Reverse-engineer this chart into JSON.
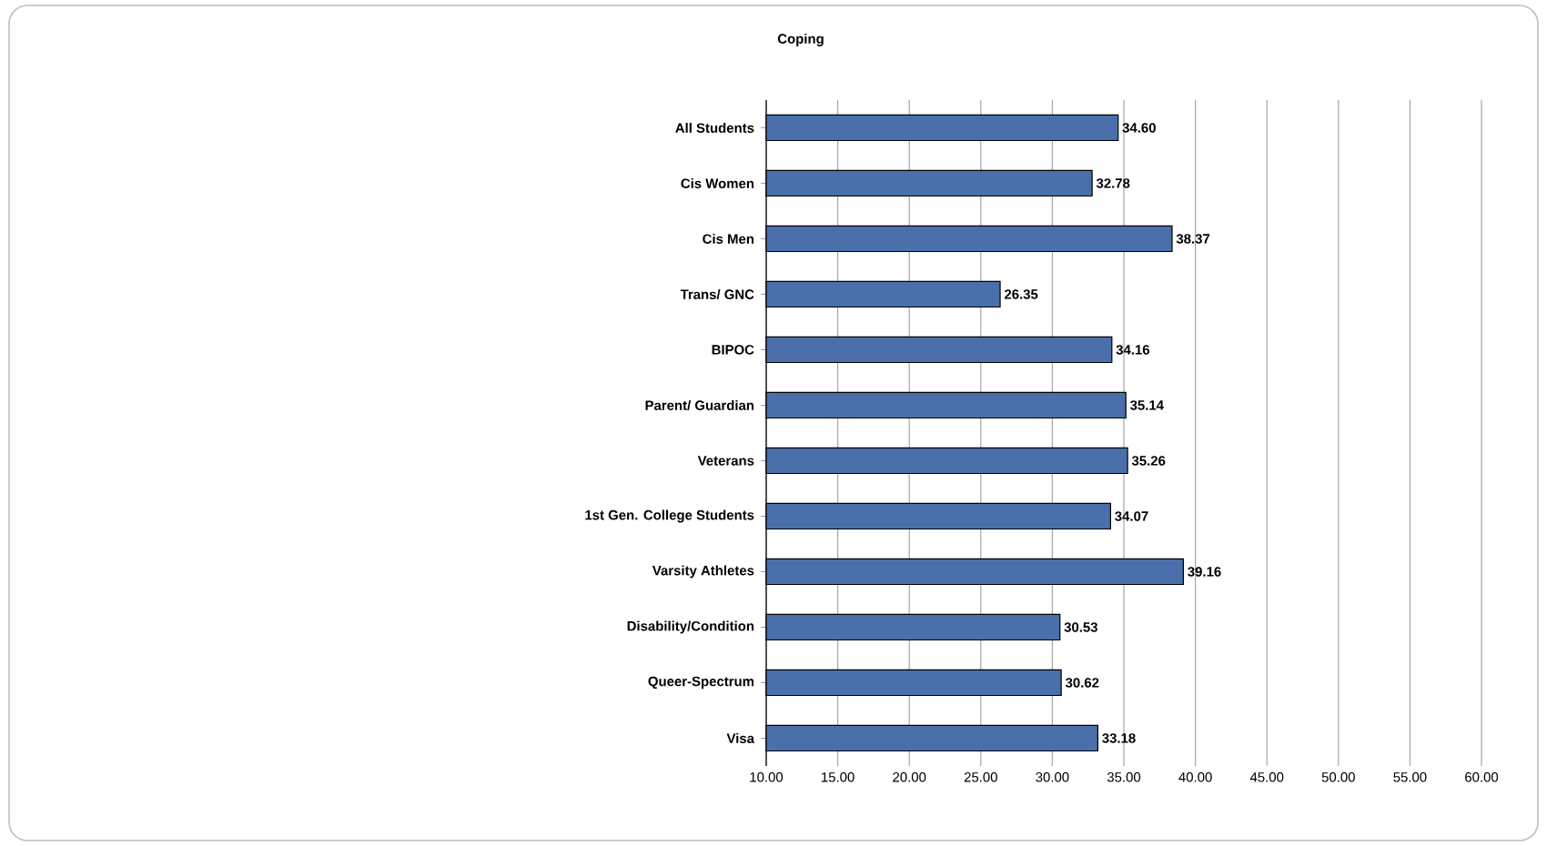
{
  "chart_data": {
    "type": "bar",
    "orientation": "horizontal",
    "title": "Coping",
    "categories": [
      "All Students",
      "Cis Women",
      "Cis Men",
      "Trans/ GNC",
      "BIPOC",
      "Parent/ Guardian",
      "Veterans",
      "1st Gen. College Students",
      "Varsity Athletes",
      "Disability/Condition",
      "Queer-Spectrum",
      "Visa"
    ],
    "values": [
      34.6,
      32.78,
      38.37,
      26.35,
      34.16,
      35.14,
      35.26,
      34.07,
      39.16,
      30.53,
      30.62,
      33.18
    ],
    "value_labels": [
      "34.60",
      "32.78",
      "38.37",
      "26.35",
      "34.16",
      "35.14",
      "35.26",
      "34.07",
      "39.16",
      "30.53",
      "30.62",
      "33.18"
    ],
    "color": "#4a6faa",
    "xlim": [
      10,
      60
    ],
    "xticks": [
      {
        "value": 10,
        "label": "10.00"
      },
      {
        "value": 15,
        "label": "15.00"
      },
      {
        "value": 20,
        "label": "20.00"
      },
      {
        "value": 25,
        "label": "25.00"
      },
      {
        "value": 30,
        "label": "30.00"
      },
      {
        "value": 35,
        "label": "35.00"
      },
      {
        "value": 40,
        "label": "40.00"
      },
      {
        "value": 45,
        "label": "45.00"
      },
      {
        "value": 50,
        "label": "50.00"
      },
      {
        "value": 55,
        "label": "55.00"
      },
      {
        "value": 60,
        "label": "60.00"
      }
    ],
    "grid": "x"
  }
}
